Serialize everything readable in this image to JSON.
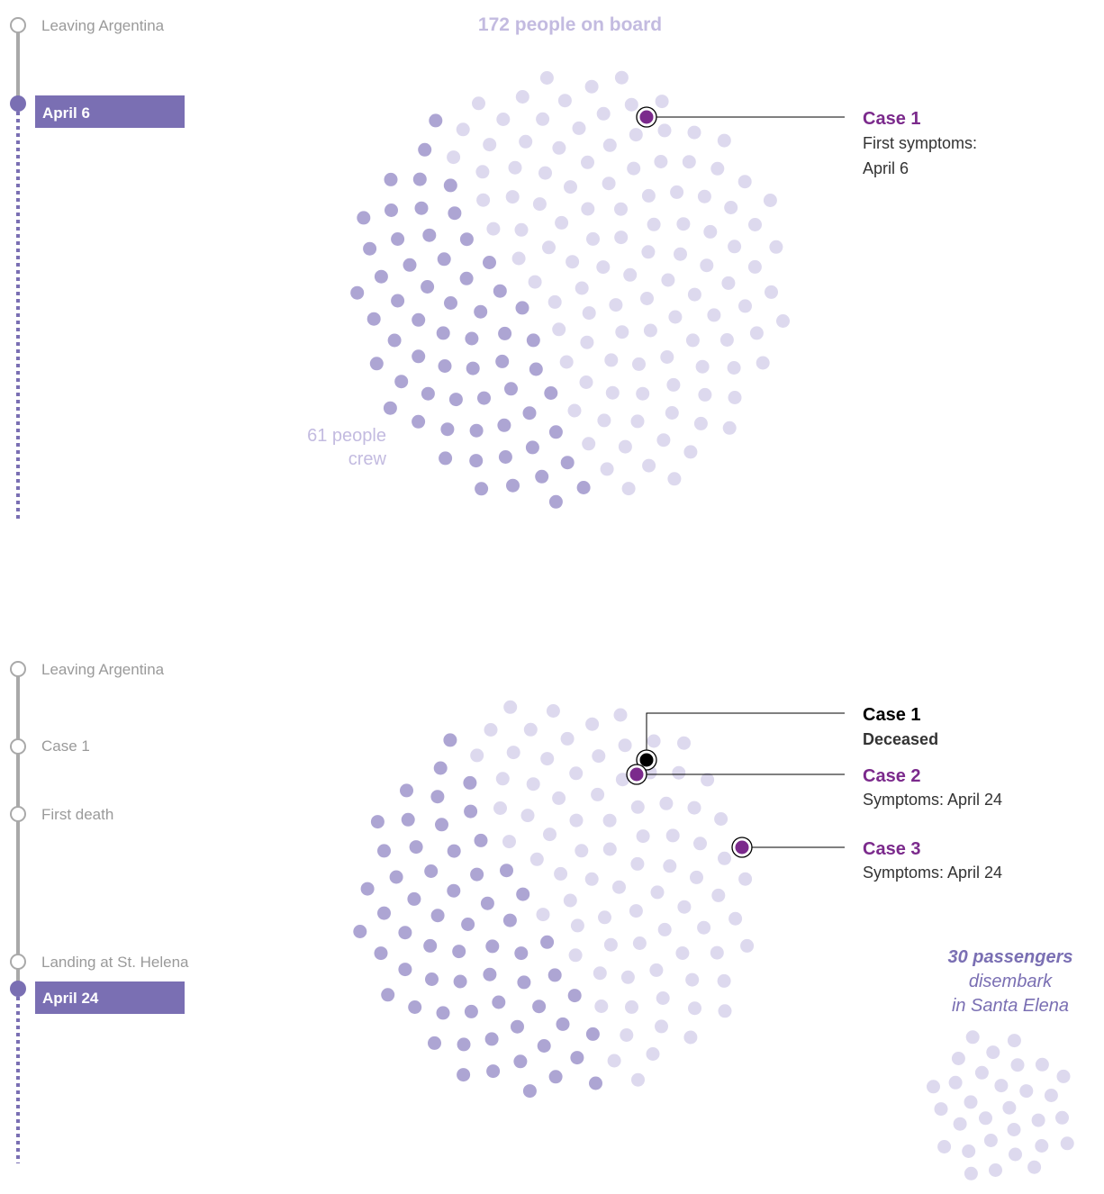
{
  "colors": {
    "crew": "#ada5d3",
    "passenger": "#ddd9ee",
    "case": "#7b2a8c",
    "deceased": "#000000",
    "timeline_gray": "#a9a9a9",
    "timeline_purple": "#7a6fb3",
    "date_bg": "#7a6fb3"
  },
  "panel1": {
    "timeline": {
      "events": [
        "Leaving Argentina"
      ],
      "current_date": "April 6"
    },
    "headline": "172 people on board",
    "crew_label_line1": "61 people",
    "crew_label_line2": "crew",
    "cases": [
      {
        "title": "Case 1",
        "line1": "First symptoms:",
        "line2": "April 6"
      }
    ]
  },
  "panel2": {
    "timeline": {
      "events": [
        "Leaving Argentina",
        "Case 1",
        "First death",
        "Landing at St. Helena"
      ],
      "current_date": "April 24"
    },
    "cases": [
      {
        "title": "Case 1",
        "line1": "Deceased"
      },
      {
        "title": "Case 2",
        "line1": "Symptoms: April 24"
      },
      {
        "title": "Case 3",
        "line1": "Symptoms: April 24"
      }
    ],
    "disembark_line1": "30 passengers",
    "disembark_line2": "disembark",
    "disembark_line3": "in Santa Elena"
  },
  "chart_data": [
    {
      "type": "dot-plot",
      "title": "172 people on board",
      "date": "April 6",
      "groups": [
        {
          "label": "61 people crew",
          "count": 61
        },
        {
          "label": "passengers",
          "count": 111
        }
      ],
      "cases": [
        {
          "name": "Case 1",
          "status": "First symptoms: April 6"
        }
      ]
    },
    {
      "type": "dot-plot",
      "date": "April 24",
      "groups": [
        {
          "label": "crew",
          "count": 61
        },
        {
          "label": "passengers remaining on board",
          "count": 81
        },
        {
          "label": "30 passengers disembark in Santa Elena",
          "count": 30
        }
      ],
      "cases": [
        {
          "name": "Case 1",
          "status": "Deceased"
        },
        {
          "name": "Case 2",
          "status": "Symptoms: April 24"
        },
        {
          "name": "Case 3",
          "status": "Symptoms: April 24"
        }
      ]
    }
  ]
}
